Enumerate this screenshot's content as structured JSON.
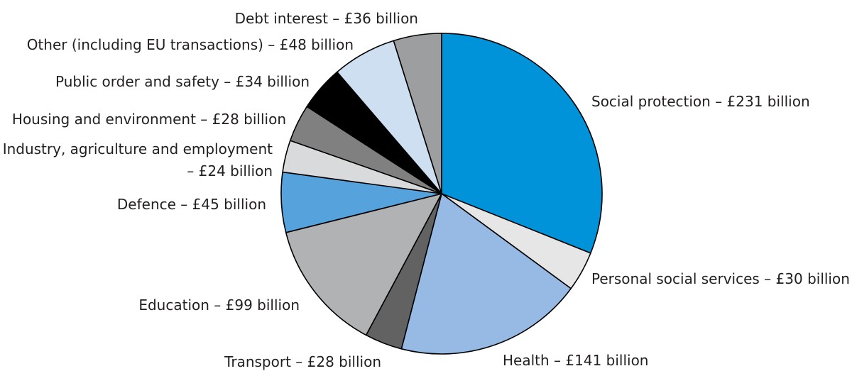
{
  "chart_data": {
    "type": "pie",
    "start": "12 o'clock",
    "direction": "clockwise",
    "slices": [
      {
        "label": "Social protection – £231 billion",
        "name": "Social protection",
        "value": 231,
        "color": "#0093d9"
      },
      {
        "label": "Personal social services – £30 billion",
        "name": "Personal social services",
        "value": 30,
        "color": "#e6e6e7"
      },
      {
        "label": "Health – £141 billion",
        "name": "Health",
        "value": 141,
        "color": "#96bae4"
      },
      {
        "label": "Transport – £28 billion",
        "name": "Transport",
        "value": 28,
        "color": "#626262"
      },
      {
        "label": "Education – £99 billion",
        "name": "Education",
        "value": 99,
        "color": "#b1b2b4"
      },
      {
        "label": "Defence – £45 billion",
        "name": "Defence",
        "value": 45,
        "color": "#55a2dc"
      },
      {
        "label": [
          "Industry, agriculture and employment",
          "– £24 billion"
        ],
        "name": "Industry, agriculture and employment",
        "value": 24,
        "color": "#d9dadb"
      },
      {
        "label": "Housing and environment – £28 billion",
        "name": "Housing and environment",
        "value": 28,
        "color": "#808080"
      },
      {
        "label": "Public order and safety – £34 billion",
        "name": "Public order and safety",
        "value": 34,
        "color": "#000000"
      },
      {
        "label": "Other (including EU transactions) – £48 billion",
        "name": "Other (including EU transactions)",
        "value": 48,
        "color": "#cddff1"
      },
      {
        "label": "Debt interest – £36 billion",
        "name": "Debt interest",
        "value": 36,
        "color": "#9d9e9f"
      }
    ]
  }
}
